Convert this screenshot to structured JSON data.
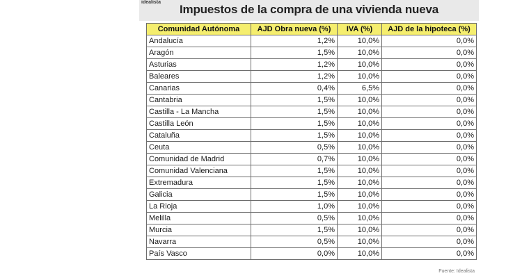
{
  "brand": "idealista",
  "title": "Impuestos de la compra de una vivienda nueva",
  "table": {
    "headers": [
      "Comunidad Autónoma",
      "AJD Obra nueva (%)",
      "IVA (%)",
      "AJD de la hipoteca (%)"
    ],
    "rows": [
      [
        "Andalucía",
        "1,2%",
        "10,0%",
        "0,0%"
      ],
      [
        "Aragón",
        "1,5%",
        "10,0%",
        "0,0%"
      ],
      [
        "Asturias",
        "1,2%",
        "10,0%",
        "0,0%"
      ],
      [
        "Baleares",
        "1,2%",
        "10,0%",
        "0,0%"
      ],
      [
        "Canarias",
        "0,4%",
        "6,5%",
        "0,0%"
      ],
      [
        "Cantabria",
        "1,5%",
        "10,0%",
        "0,0%"
      ],
      [
        "Castilla - La Mancha",
        "1,5%",
        "10,0%",
        "0,0%"
      ],
      [
        "Castilla León",
        "1,5%",
        "10,0%",
        "0,0%"
      ],
      [
        "Cataluña",
        "1,5%",
        "10,0%",
        "0,0%"
      ],
      [
        "Ceuta",
        "0,5%",
        "10,0%",
        "0,0%"
      ],
      [
        "Comunidad de Madrid",
        "0,7%",
        "10,0%",
        "0,0%"
      ],
      [
        "Comunidad Valenciana",
        "1,5%",
        "10,0%",
        "0,0%"
      ],
      [
        "Extremadura",
        "1,5%",
        "10,0%",
        "0,0%"
      ],
      [
        "Galicia",
        "1,5%",
        "10,0%",
        "0,0%"
      ],
      [
        "La Rioja",
        "1,0%",
        "10,0%",
        "0,0%"
      ],
      [
        "Melilla",
        "0,5%",
        "10,0%",
        "0,0%"
      ],
      [
        "Murcia",
        "1,5%",
        "10,0%",
        "0,0%"
      ],
      [
        "Navarra",
        "0,5%",
        "10,0%",
        "0,0%"
      ],
      [
        "País Vasco",
        "0,0%",
        "10,0%",
        "0,0%"
      ]
    ]
  },
  "source": "Fuente: Idealista",
  "colors": {
    "header_fill": "#f5ee6e",
    "title_band": "#e9e9e9",
    "border": "#6d6d6d"
  }
}
